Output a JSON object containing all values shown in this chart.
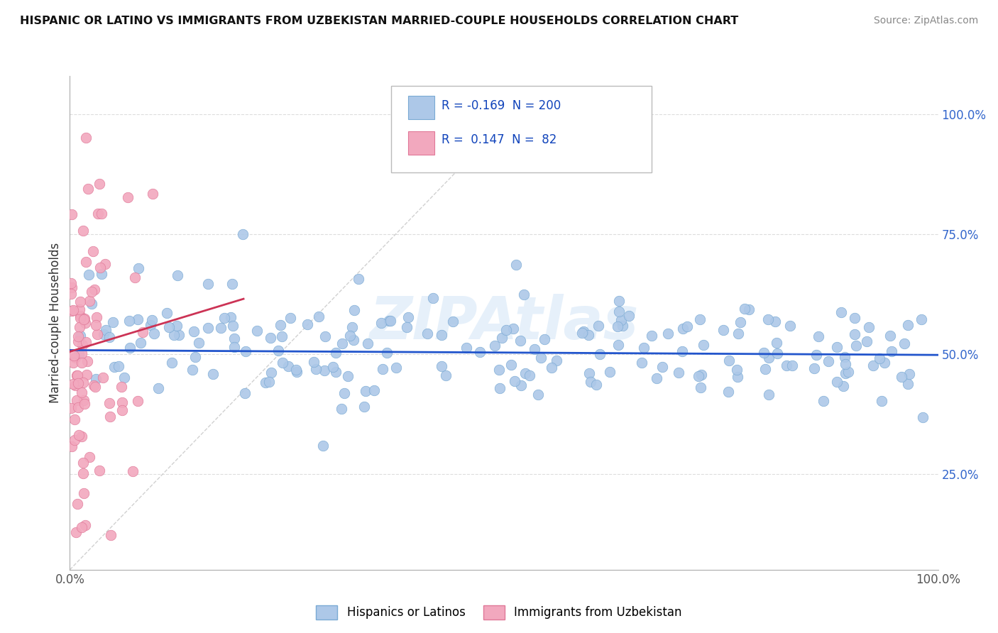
{
  "title": "HISPANIC OR LATINO VS IMMIGRANTS FROM UZBEKISTAN MARRIED-COUPLE HOUSEHOLDS CORRELATION CHART",
  "source": "Source: ZipAtlas.com",
  "ylabel": "Married-couple Households",
  "legend_labels": [
    "Hispanics or Latinos",
    "Immigrants from Uzbekistan"
  ],
  "blue_R": -0.169,
  "blue_N": 200,
  "pink_R": 0.147,
  "pink_N": 82,
  "blue_color": "#adc8e8",
  "pink_color": "#f2a8be",
  "blue_edge_color": "#7aaad4",
  "pink_edge_color": "#e07898",
  "blue_line_color": "#2255cc",
  "pink_line_color": "#cc3355",
  "watermark": "ZIPAtlas",
  "xlim": [
    0.0,
    1.0
  ],
  "ylim": [
    0.05,
    1.08
  ],
  "yticks": [
    0.25,
    0.5,
    0.75,
    1.0
  ],
  "ytick_labels": [
    "25.0%",
    "50.0%",
    "75.0%",
    "100.0%"
  ],
  "seed_blue": 42,
  "seed_pink": 7
}
